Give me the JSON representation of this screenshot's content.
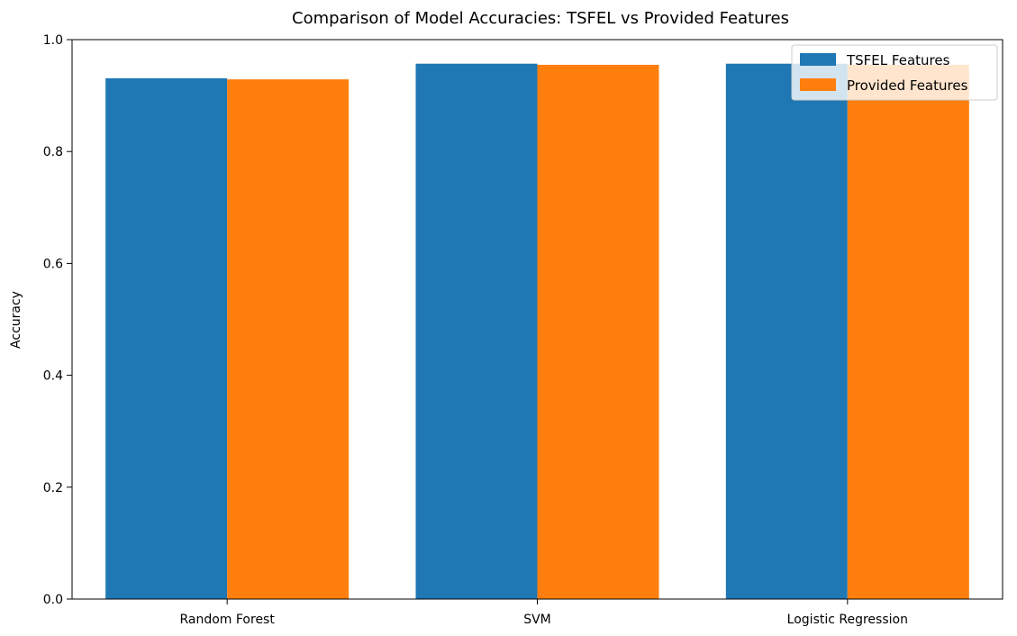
{
  "chart_data": {
    "type": "bar",
    "title": "Comparison of Model Accuracies: TSFEL vs Provided Features",
    "xlabel": "",
    "ylabel": "Accuracy",
    "categories": [
      "Random Forest",
      "SVM",
      "Logistic Regression"
    ],
    "series": [
      {
        "name": "TSFEL Features",
        "color": "#1f77b4",
        "values": [
          0.931,
          0.957,
          0.957
        ]
      },
      {
        "name": "Provided Features",
        "color": "#ff7f0e",
        "values": [
          0.929,
          0.955,
          0.955
        ]
      }
    ],
    "ylim": [
      0,
      1.0
    ],
    "yticks": [
      "0.0",
      "0.2",
      "0.4",
      "0.6",
      "0.8",
      "1.0"
    ],
    "grid": false,
    "legend": "top-right"
  }
}
